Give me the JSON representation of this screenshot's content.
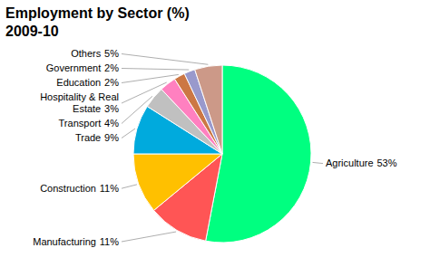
{
  "chart_data": {
    "type": "pie",
    "title": "Employment by Sector (%)",
    "subtitle": "2009-10",
    "categories": [
      "Agriculture",
      "Manufacturing",
      "Construction",
      "Trade",
      "Transport",
      "Hospitality & Real\nEstate",
      "Education",
      "Government",
      "Others"
    ],
    "values": [
      53,
      11,
      11,
      9,
      4,
      3,
      2,
      2,
      5
    ],
    "value_labels": [
      "53%",
      "11%",
      "11%",
      "9%",
      "4%",
      "3%",
      "2%",
      "2%",
      "5%"
    ],
    "colors": [
      "#00FF80",
      "#FF5555",
      "#FFC000",
      "#00AADD",
      "#C0C0C0",
      "#FF80C0",
      "#CC7744",
      "#9999CC",
      "#CC9988"
    ],
    "data_labels": true
  }
}
